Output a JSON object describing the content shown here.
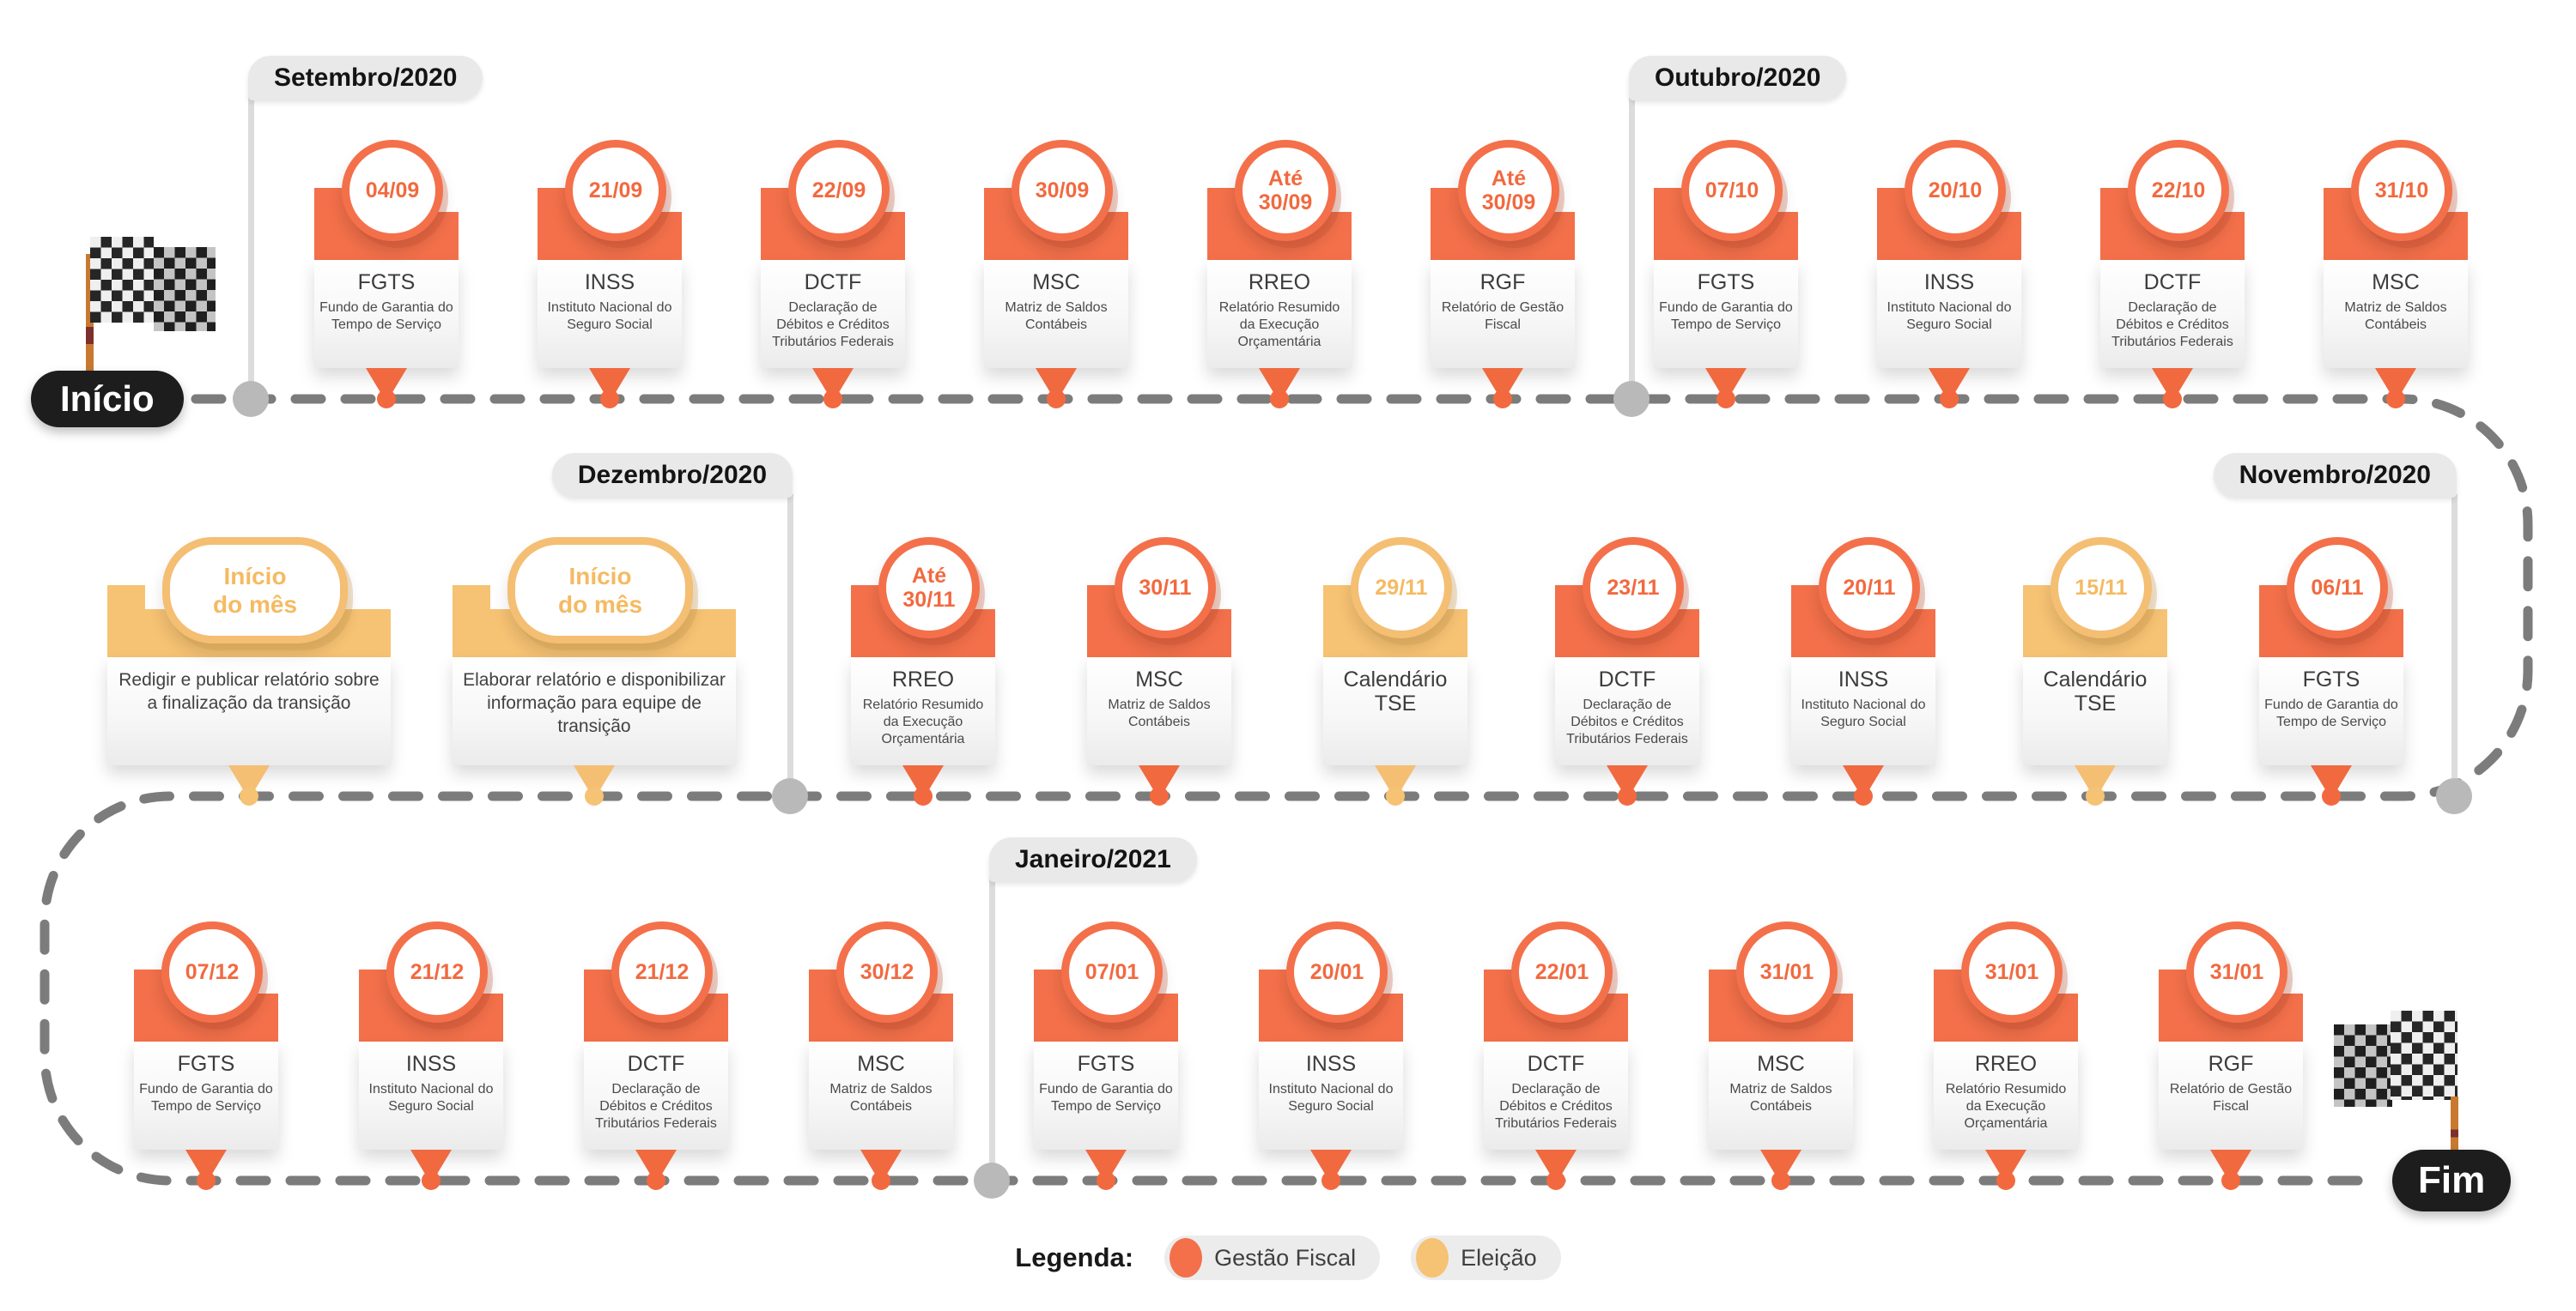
{
  "start": {
    "label": "Início"
  },
  "end": {
    "label": "Fim"
  },
  "colors": {
    "fiscal": "#F3704A",
    "eleicao": "#F6C273"
  },
  "months": [
    {
      "label": "Setembro/2020"
    },
    {
      "label": "Outubro/2020"
    },
    {
      "label": "Dezembro/2020"
    },
    {
      "label": "Novembro/2020"
    },
    {
      "label": "Janeiro/2021"
    }
  ],
  "cards": [
    {
      "type": "fiscal",
      "date": "04/09",
      "title": "FGTS",
      "subtitle": "Fundo de Garantia do Tempo de Serviço"
    },
    {
      "type": "fiscal",
      "date": "21/09",
      "title": "INSS",
      "subtitle": "Instituto Nacional do Seguro Social"
    },
    {
      "type": "fiscal",
      "date": "22/09",
      "title": "DCTF",
      "subtitle": "Declaração de Débitos e Créditos Tributários Federais"
    },
    {
      "type": "fiscal",
      "date": "30/09",
      "title": "MSC",
      "subtitle": "Matriz de Saldos Contábeis"
    },
    {
      "type": "fiscal",
      "date": "Até\n30/09",
      "title": "RREO",
      "subtitle": "Relatório Resumido da Execução Orçamentária"
    },
    {
      "type": "fiscal",
      "date": "Até\n30/09",
      "title": "RGF",
      "subtitle": "Relatório de Gestão Fiscal"
    },
    {
      "type": "fiscal",
      "date": "07/10",
      "title": "FGTS",
      "subtitle": "Fundo de Garantia do Tempo de Serviço"
    },
    {
      "type": "fiscal",
      "date": "20/10",
      "title": "INSS",
      "subtitle": "Instituto Nacional do Seguro Social"
    },
    {
      "type": "fiscal",
      "date": "22/10",
      "title": "DCTF",
      "subtitle": "Declaração de Débitos e Créditos Tributários Federais"
    },
    {
      "type": "fiscal",
      "date": "31/10",
      "title": "MSC",
      "subtitle": "Matriz de Saldos Contábeis"
    },
    {
      "type": "eleicao",
      "badge": "Início\ndo mês",
      "text": "Redigir e publicar relatório sobre a finalização da transição"
    },
    {
      "type": "eleicao",
      "badge": "Início\ndo mês",
      "text": "Elaborar relatório e disponibilizar informação para equipe de transição"
    },
    {
      "type": "fiscal",
      "date": "Até\n30/11",
      "title": "RREO",
      "subtitle": "Relatório Resumido da Execução Orçamentária"
    },
    {
      "type": "fiscal",
      "date": "30/11",
      "title": "MSC",
      "subtitle": "Matriz de Saldos Contábeis"
    },
    {
      "type": "eleicao",
      "date": "29/11",
      "title": "Calendário TSE",
      "subtitle": ""
    },
    {
      "type": "fiscal",
      "date": "23/11",
      "title": "DCTF",
      "subtitle": "Declaração de Débitos e Créditos Tributários Federais"
    },
    {
      "type": "fiscal",
      "date": "20/11",
      "title": "INSS",
      "subtitle": "Instituto Nacional do Seguro Social"
    },
    {
      "type": "eleicao",
      "date": "15/11",
      "title": "Calendário TSE",
      "subtitle": ""
    },
    {
      "type": "fiscal",
      "date": "06/11",
      "title": "FGTS",
      "subtitle": "Fundo de Garantia do Tempo de Serviço"
    },
    {
      "type": "fiscal",
      "date": "07/12",
      "title": "FGTS",
      "subtitle": "Fundo de Garantia do Tempo de Serviço"
    },
    {
      "type": "fiscal",
      "date": "21/12",
      "title": "INSS",
      "subtitle": "Instituto Nacional do Seguro Social"
    },
    {
      "type": "fiscal",
      "date": "21/12",
      "title": "DCTF",
      "subtitle": "Declaração de Débitos e Créditos Tributários Federais"
    },
    {
      "type": "fiscal",
      "date": "30/12",
      "title": "MSC",
      "subtitle": "Matriz de Saldos Contábeis"
    },
    {
      "type": "fiscal",
      "date": "07/01",
      "title": "FGTS",
      "subtitle": "Fundo de Garantia do Tempo de Serviço"
    },
    {
      "type": "fiscal",
      "date": "20/01",
      "title": "INSS",
      "subtitle": "Instituto Nacional do Seguro Social"
    },
    {
      "type": "fiscal",
      "date": "22/01",
      "title": "DCTF",
      "subtitle": "Declaração de Débitos e Créditos Tributários Federais"
    },
    {
      "type": "fiscal",
      "date": "31/01",
      "title": "MSC",
      "subtitle": "Matriz de Saldos Contábeis"
    },
    {
      "type": "fiscal",
      "date": "31/01",
      "title": "RREO",
      "subtitle": "Relatório Resumido da Execução Orçamentária"
    },
    {
      "type": "fiscal",
      "date": "31/01",
      "title": "RGF",
      "subtitle": "Relatório de Gestão Fiscal"
    }
  ],
  "legend": {
    "label": "Legenda:",
    "items": [
      {
        "label": "Gestão Fiscal",
        "type": "fiscal"
      },
      {
        "label": "Eleição",
        "type": "eleicao"
      }
    ]
  }
}
